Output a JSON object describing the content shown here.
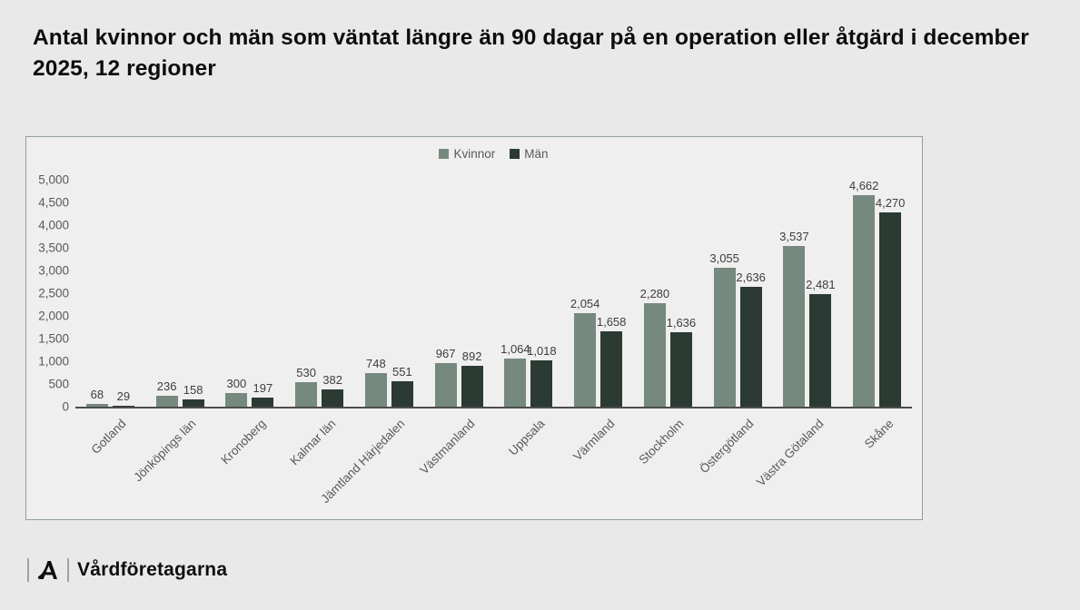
{
  "title": "Antal kvinnor och män som väntat längre än 90 dagar på en operation eller åtgärd i december 2025, 12 regioner",
  "footer": {
    "brand": "Vårdföretagarna",
    "logo_mark": "A"
  },
  "colors": {
    "kvinnor": "#76897e",
    "man": "#2b3a32",
    "panel_border": "#90a098",
    "axis_line": "#4d4d4d",
    "value_label_text": "#3d3d3d",
    "tick_text": "#595959",
    "page_bg": "#e9e9e9",
    "panel_bg": "#efefef"
  },
  "chart_data": {
    "type": "bar",
    "title": "Antal kvinnor och män som väntat längre än 90 dagar på en operation eller åtgärd i december 2025, 12 regioner",
    "categories": [
      "Gotland",
      "Jönköpings län",
      "Kronoberg",
      "Kalmar län",
      "Jämtland Härjedalen",
      "Västmanland",
      "Uppsala",
      "Värmland",
      "Stockholm",
      "Östergötland",
      "Västra Götaland",
      "Skåne"
    ],
    "series": [
      {
        "name": "Kvinnor",
        "color_key": "kvinnor",
        "values": [
          68,
          236,
          300,
          530,
          748,
          967,
          1064,
          2054,
          2280,
          3055,
          3537,
          4662
        ],
        "labels": [
          "68",
          "236",
          "300",
          "530",
          "748",
          "967",
          "1,064",
          "2,054",
          "2,280",
          "3,055",
          "3,537",
          "4,662"
        ]
      },
      {
        "name": "Män",
        "color_key": "man",
        "values": [
          29,
          158,
          197,
          382,
          551,
          892,
          1018,
          1658,
          1636,
          2636,
          2481,
          4270
        ],
        "labels": [
          "29",
          "158",
          "197",
          "382",
          "551",
          "892",
          "1,018",
          "1,658",
          "1,636",
          "2,636",
          "2,481",
          "4,270"
        ]
      }
    ],
    "xlabel": "",
    "ylabel": "",
    "ylim": [
      0,
      5000
    ],
    "ytick_step": 500,
    "ytick_labels": [
      "0",
      "500",
      "1,000",
      "1,500",
      "2,000",
      "2,500",
      "3,000",
      "3,500",
      "4,000",
      "4,500",
      "5,000"
    ],
    "grid": false,
    "legend_position": "top-center",
    "value_labels": true
  }
}
